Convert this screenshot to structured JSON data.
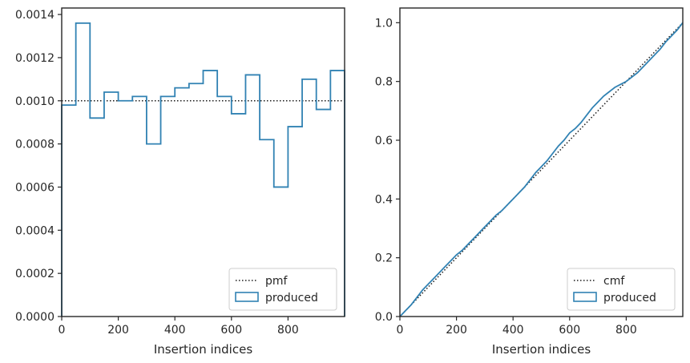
{
  "colors": {
    "series": "#3182b3",
    "reference": "#1a1a1a",
    "axes": "#262626"
  },
  "chart_data": [
    {
      "type": "line",
      "subtype": "step-histogram",
      "xlabel": "Insertion indices",
      "ylabel": "",
      "xlim": [
        0,
        1000
      ],
      "ylim": [
        0,
        0.00143
      ],
      "xticks": [
        0,
        200,
        400,
        600,
        800
      ],
      "xtick_labels": [
        "0",
        "200",
        "400",
        "600",
        "800"
      ],
      "yticks": [
        0,
        0.0002,
        0.0004,
        0.0006,
        0.0008,
        0.001,
        0.0012,
        0.0014
      ],
      "ytick_labels": [
        "0.0000",
        "0.0002",
        "0.0004",
        "0.0006",
        "0.0008",
        "0.0010",
        "0.0012",
        "0.0014"
      ],
      "legend": {
        "position": "lower-right",
        "entries": [
          "pmf",
          "produced"
        ]
      },
      "reference": {
        "name": "pmf",
        "style": "dotted",
        "value": 0.001
      },
      "series": [
        {
          "name": "produced",
          "bin_edges": [
            0,
            50,
            100,
            150,
            200,
            250,
            300,
            350,
            400,
            450,
            500,
            550,
            600,
            650,
            700,
            750,
            800,
            850,
            900,
            950,
            1000
          ],
          "values": [
            0.00098,
            0.00136,
            0.00092,
            0.00104,
            0.001,
            0.00102,
            0.0008,
            0.00102,
            0.00106,
            0.00108,
            0.00114,
            0.00102,
            0.00094,
            0.00112,
            0.00082,
            0.0006,
            0.00088,
            0.0011,
            0.00096,
            0.00114
          ]
        }
      ]
    },
    {
      "type": "line",
      "subtype": "cumulative",
      "xlabel": "Insertion indices",
      "ylabel": "",
      "xlim": [
        0,
        1000
      ],
      "ylim": [
        0,
        1.05
      ],
      "xticks": [
        0,
        200,
        400,
        600,
        800
      ],
      "xtick_labels": [
        "0",
        "200",
        "400",
        "600",
        "800"
      ],
      "yticks": [
        0.0,
        0.2,
        0.4,
        0.6,
        0.8,
        1.0
      ],
      "ytick_labels": [
        "0.0",
        "0.2",
        "0.4",
        "0.6",
        "0.8",
        "1.0"
      ],
      "legend": {
        "position": "lower-right",
        "entries": [
          "cmf",
          "produced"
        ]
      },
      "reference": {
        "name": "cmf",
        "style": "dotted",
        "x": [
          0,
          1000
        ],
        "y": [
          0,
          1
        ]
      },
      "series": [
        {
          "name": "produced",
          "x": [
            0,
            20,
            40,
            60,
            80,
            100,
            120,
            140,
            160,
            180,
            200,
            220,
            240,
            260,
            280,
            300,
            320,
            340,
            360,
            380,
            400,
            420,
            440,
            460,
            480,
            500,
            520,
            540,
            560,
            580,
            600,
            620,
            640,
            660,
            680,
            700,
            720,
            740,
            760,
            780,
            800,
            820,
            840,
            860,
            880,
            900,
            920,
            940,
            960,
            980,
            1000
          ],
          "y": [
            0.0,
            0.02,
            0.04,
            0.065,
            0.09,
            0.11,
            0.13,
            0.15,
            0.17,
            0.19,
            0.21,
            0.225,
            0.245,
            0.265,
            0.285,
            0.305,
            0.325,
            0.345,
            0.36,
            0.38,
            0.4,
            0.42,
            0.44,
            0.465,
            0.49,
            0.51,
            0.53,
            0.555,
            0.58,
            0.6,
            0.625,
            0.64,
            0.66,
            0.685,
            0.71,
            0.73,
            0.75,
            0.765,
            0.78,
            0.79,
            0.8,
            0.815,
            0.83,
            0.85,
            0.87,
            0.89,
            0.91,
            0.935,
            0.955,
            0.975,
            1.0
          ]
        }
      ]
    }
  ]
}
